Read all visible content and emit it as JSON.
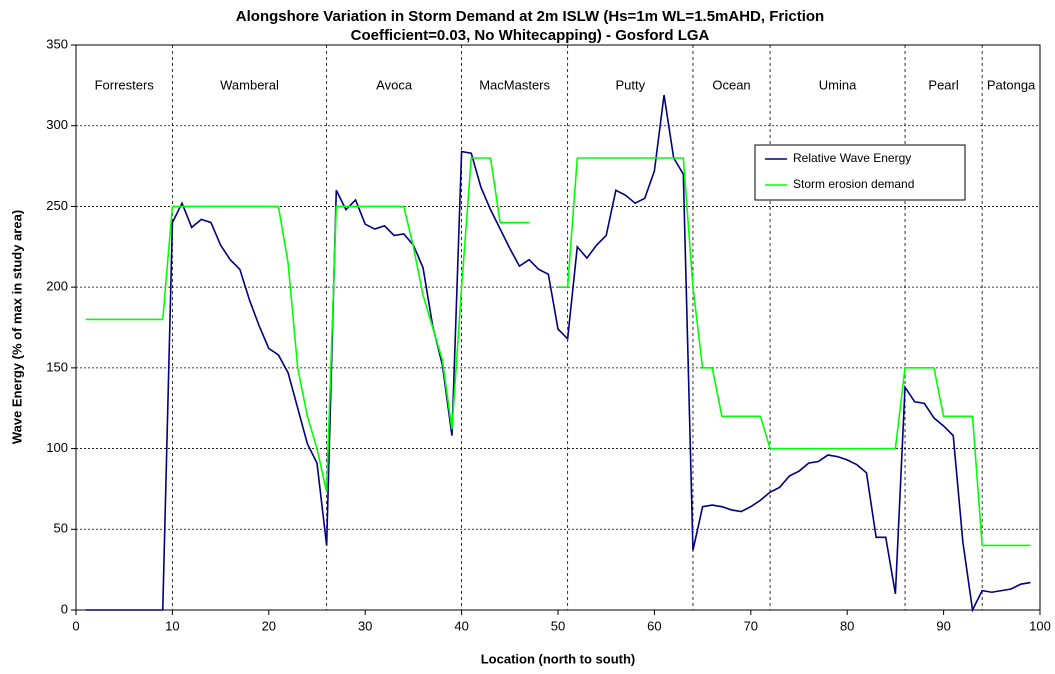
{
  "chart_data": {
    "type": "line",
    "title": [
      "Alongshore Variation in Storm Demand at 2m ISLW (Hs=1m WL=1.5mAHD, Friction",
      "Coefficient=0.03, No Whitecapping) - Gosford LGA"
    ],
    "x_label": "Location (north to south)",
    "y_label": "Wave Energy (% of max in study area)",
    "x": [
      1,
      2,
      3,
      4,
      5,
      6,
      7,
      8,
      9,
      10,
      11,
      12,
      13,
      14,
      15,
      16,
      17,
      18,
      19,
      20,
      21,
      22,
      23,
      24,
      25,
      26,
      27,
      28,
      29,
      30,
      31,
      32,
      33,
      34,
      35,
      36,
      37,
      38,
      39,
      40,
      41,
      42,
      43,
      44,
      45,
      46,
      47,
      48,
      49,
      50,
      51,
      52,
      53,
      54,
      55,
      56,
      57,
      58,
      59,
      60,
      61,
      62,
      63,
      64,
      65,
      66,
      67,
      68,
      69,
      70,
      71,
      72,
      73,
      74,
      75,
      76,
      77,
      78,
      79,
      80,
      81,
      82,
      83,
      84,
      85,
      86,
      87,
      88,
      89,
      90,
      91,
      92,
      93,
      94,
      95,
      96,
      97,
      98,
      99
    ],
    "series": [
      {
        "name": "Relative Wave Energy",
        "color": "#000080",
        "values": [
          0,
          0,
          0,
          0,
          0,
          0,
          0,
          0,
          0,
          240,
          252,
          237,
          242,
          240,
          226,
          217,
          211,
          192,
          176,
          162,
          158,
          147,
          125,
          103,
          91,
          40,
          260,
          248,
          254,
          239,
          236,
          238,
          232,
          233,
          226,
          212,
          176,
          152,
          108,
          284,
          283,
          262,
          248,
          236,
          224,
          213,
          217,
          211,
          208,
          174,
          168,
          225,
          218,
          226,
          232,
          260,
          257,
          252,
          255,
          272,
          319,
          280,
          270,
          37,
          64,
          65,
          64,
          62,
          61,
          64,
          68,
          73,
          76,
          83,
          86,
          91,
          92,
          96,
          95,
          93,
          90,
          85,
          45,
          45,
          10,
          138,
          129,
          128,
          119,
          114,
          108,
          42,
          0,
          12,
          11,
          12,
          13,
          16,
          17
        ]
      },
      {
        "name": "Storm erosion demand",
        "color": "#00ff00",
        "values": [
          180,
          180,
          180,
          180,
          180,
          180,
          180,
          180,
          180,
          250,
          250,
          250,
          250,
          250,
          250,
          250,
          250,
          250,
          250,
          250,
          250,
          215,
          150,
          120,
          100,
          73,
          250,
          250,
          250,
          250,
          250,
          250,
          250,
          250,
          225,
          195,
          175,
          155,
          112,
          200,
          280,
          280,
          280,
          240,
          240,
          240,
          240,
          null,
          null,
          200,
          200,
          280,
          280,
          280,
          280,
          280,
          280,
          280,
          280,
          280,
          280,
          280,
          280,
          200,
          150,
          150,
          120,
          120,
          120,
          120,
          120,
          100,
          100,
          100,
          100,
          100,
          100,
          100,
          100,
          100,
          100,
          100,
          100,
          100,
          100,
          150,
          150,
          150,
          150,
          120,
          120,
          120,
          120,
          40,
          40,
          40,
          40,
          40,
          40
        ]
      }
    ],
    "regions": [
      "Forresters",
      "Wamberal",
      "Avoca",
      "MacMasters",
      "Putty",
      "Ocean",
      "Umina",
      "Pearl",
      "Patonga"
    ],
    "dividers": [
      10,
      26,
      40,
      51,
      64,
      72,
      86,
      94
    ],
    "xlim": [
      0,
      100
    ],
    "xticks": [
      0,
      10,
      20,
      30,
      40,
      50,
      60,
      70,
      80,
      90,
      100
    ],
    "ylim": [
      0,
      350
    ],
    "yticks": [
      0,
      50,
      100,
      150,
      200,
      250,
      300,
      350
    ],
    "grid": true,
    "legend": "upper right"
  }
}
